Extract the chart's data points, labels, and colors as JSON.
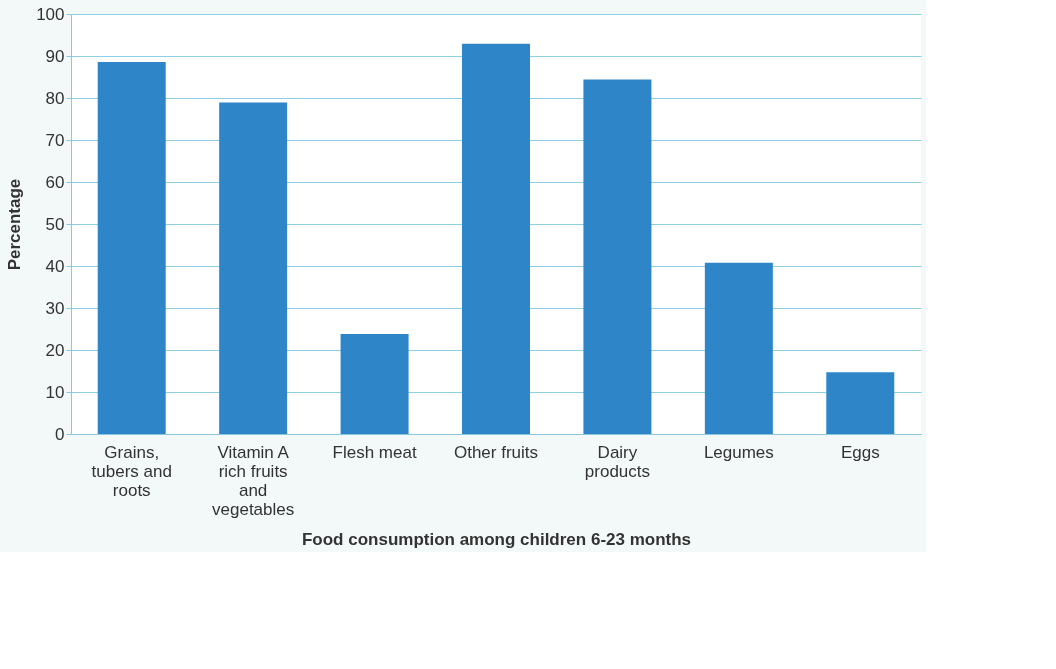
{
  "chart_data": {
    "type": "bar",
    "xlabel": "Food consumption among children 6-23 months",
    "ylabel": "Percentage",
    "categories": [
      "Grains, tubers and roots",
      "Vitamin A rich fruits and vegetables",
      "Flesh meat",
      "Other fruits",
      "Dairy products",
      "Legumes",
      "Eggs"
    ],
    "values": [
      88.6,
      78.9,
      23.8,
      92.9,
      84.4,
      40.8,
      14.7
    ],
    "color": "#2e86c8",
    "ylim": [
      0,
      100
    ],
    "yticks": [
      0,
      10,
      20,
      30,
      40,
      50,
      60,
      70,
      80,
      90,
      100
    ],
    "grid": "y"
  }
}
